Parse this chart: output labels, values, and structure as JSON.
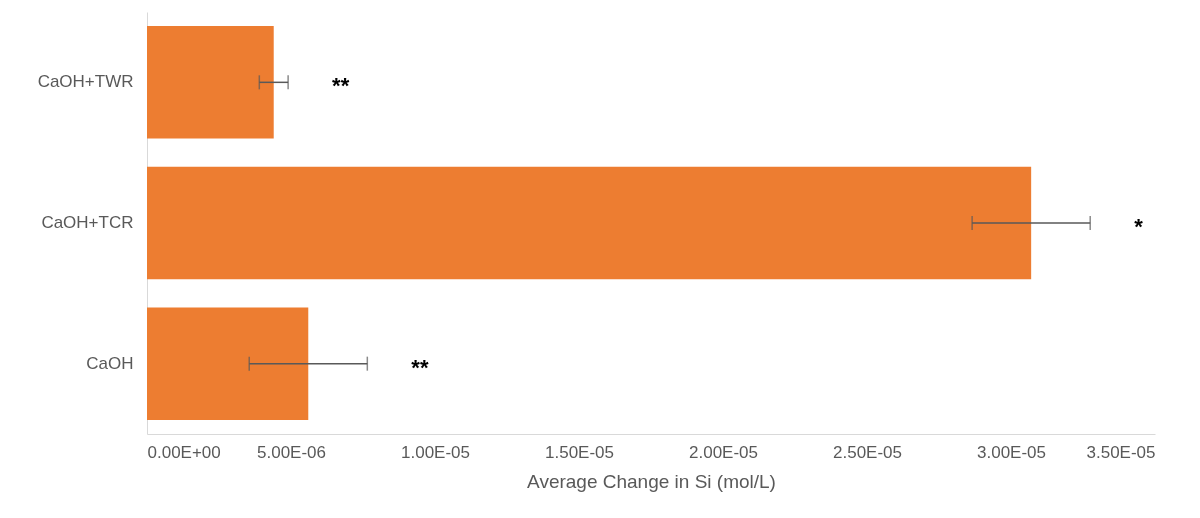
{
  "chart_data": {
    "type": "bar",
    "orientation": "horizontal",
    "xlabel": "Average Change in Si (mol/L)",
    "categories": [
      "CaOH+TWR",
      "CaOH+TCR",
      "CaOH"
    ],
    "values": [
      4.4e-06,
      3.07e-05,
      5.6e-06
    ],
    "errors": [
      5e-07,
      2.05e-06,
      2.05e-06
    ],
    "color": "#ed7d31",
    "xlim": [
      0,
      3.5e-05
    ],
    "xticks": [
      {
        "value": 0,
        "label": "0.00E+00"
      },
      {
        "value": 5e-06,
        "label": "5.00E-06"
      },
      {
        "value": 1e-05,
        "label": "1.00E-05"
      },
      {
        "value": 1.5e-05,
        "label": "1.50E-05"
      },
      {
        "value": 2e-05,
        "label": "2.00E-05"
      },
      {
        "value": 2.5e-05,
        "label": "2.50E-05"
      },
      {
        "value": 3e-05,
        "label": "3.00E-05"
      },
      {
        "value": 3.5e-05,
        "label": "3.50E-05"
      }
    ],
    "annotations": [
      "**",
      "*",
      "**"
    ],
    "grid": false
  }
}
